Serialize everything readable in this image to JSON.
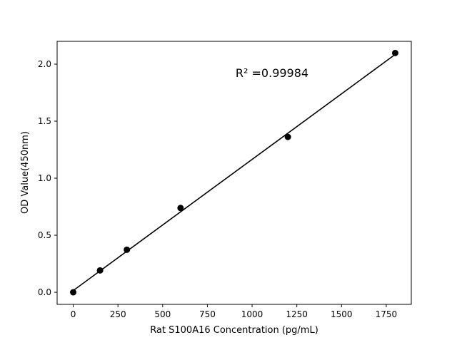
{
  "chart_data": {
    "type": "scatter",
    "title": "",
    "xlabel": "Rat S100A16 Concentration (pg/mL)",
    "ylabel": "OD Value(450nm)",
    "xlim": [
      -90,
      1890
    ],
    "ylim": [
      -0.106,
      2.2
    ],
    "xticks": [
      0,
      250,
      500,
      750,
      1000,
      1250,
      1500,
      1750
    ],
    "xtick_labels": [
      "0",
      "250",
      "500",
      "750",
      "1000",
      "1250",
      "1500",
      "1750"
    ],
    "yticks": [
      0.0,
      0.5,
      1.0,
      1.5,
      2.0
    ],
    "ytick_labels": [
      "0.0",
      "0.5",
      "1.0",
      "1.5",
      "2.0"
    ],
    "grid": false,
    "series": [
      {
        "type": "scatter",
        "x": [
          0,
          150,
          300,
          600,
          1200,
          1800
        ],
        "y": [
          0.0,
          0.192,
          0.373,
          0.739,
          1.362,
          2.098
        ],
        "color": "#000000"
      },
      {
        "type": "line",
        "x": [
          0,
          1800
        ],
        "y": [
          0.015,
          2.085
        ],
        "color": "#000000"
      }
    ],
    "annotation": "R² =0.99984"
  }
}
